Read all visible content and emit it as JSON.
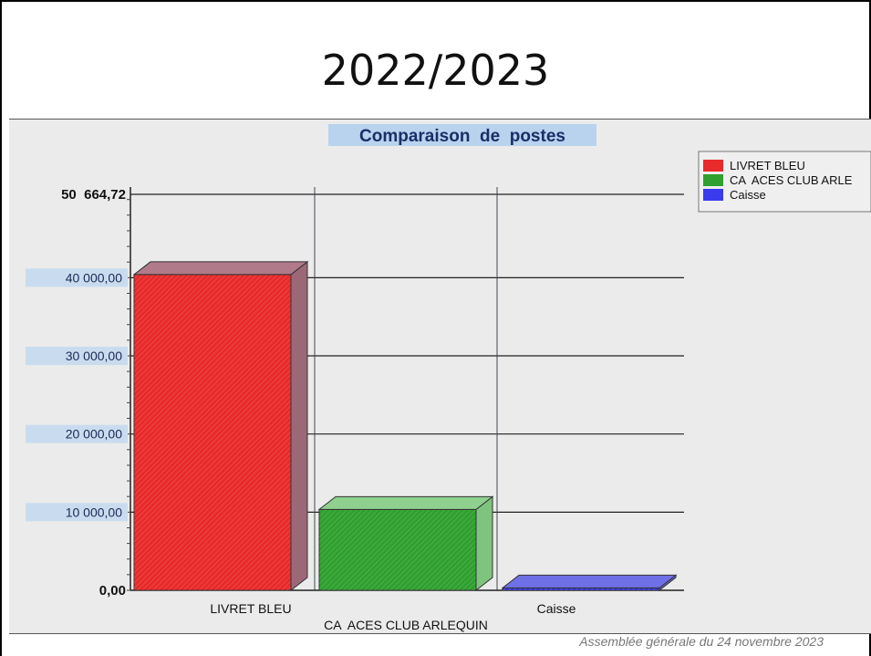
{
  "slide": {
    "title": "2022/2023",
    "footer": "Assemblée générale du 24 novembre 2023"
  },
  "chart_data": {
    "type": "bar",
    "title": "Comparaison  de  postes",
    "categories": [
      "LIVRET BLEU",
      "CA  ACES CLUB ARLEQUIN",
      "Caisse"
    ],
    "values": [
      40400,
      10350,
      300
    ],
    "colors": [
      "#e82a2a",
      "#2fa02f",
      "#3a3aee"
    ],
    "ylim": [
      0,
      50664.72
    ],
    "yticks": [
      {
        "value": 0,
        "label": "0,00"
      },
      {
        "value": 10000,
        "label": "10 000,00"
      },
      {
        "value": 20000,
        "label": "20 000,00"
      },
      {
        "value": 30000,
        "label": "30 000,00"
      },
      {
        "value": 40000,
        "label": "40 000,00"
      },
      {
        "value": 50664.72,
        "label": "50  664,72"
      }
    ],
    "legend": {
      "placement": "top-right",
      "entries": [
        "LIVRET BLEU",
        "CA  ACES CLUB ARLE",
        "Caisse"
      ]
    },
    "grid": true
  }
}
